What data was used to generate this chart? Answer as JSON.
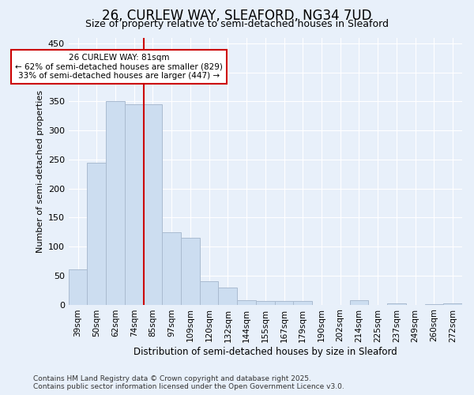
{
  "title_line1": "26, CURLEW WAY, SLEAFORD, NG34 7UD",
  "title_line2": "Size of property relative to semi-detached houses in Sleaford",
  "xlabel": "Distribution of semi-detached houses by size in Sleaford",
  "ylabel": "Number of semi-detached properties",
  "categories": [
    "39sqm",
    "50sqm",
    "62sqm",
    "74sqm",
    "85sqm",
    "97sqm",
    "109sqm",
    "120sqm",
    "132sqm",
    "144sqm",
    "155sqm",
    "167sqm",
    "179sqm",
    "190sqm",
    "202sqm",
    "214sqm",
    "225sqm",
    "237sqm",
    "249sqm",
    "260sqm",
    "272sqm"
  ],
  "values": [
    60,
    245,
    350,
    345,
    345,
    125,
    115,
    40,
    30,
    8,
    6,
    6,
    6,
    0,
    0,
    7,
    0,
    2,
    0,
    1,
    2
  ],
  "bar_color": "#ccddf0",
  "bar_edge_color": "#aabbd0",
  "property_line_color": "#cc0000",
  "annotation_text_line1": "26 CURLEW WAY: 81sqm",
  "annotation_text_line2": "← 62% of semi-detached houses are smaller (829)",
  "annotation_text_line3": "33% of semi-detached houses are larger (447) →",
  "annotation_box_facecolor": "#ffffff",
  "annotation_box_edgecolor": "#cc0000",
  "ylim": [
    0,
    460
  ],
  "yticks": [
    0,
    50,
    100,
    150,
    200,
    250,
    300,
    350,
    400,
    450
  ],
  "background_color": "#e8f0fa",
  "grid_color": "#ffffff",
  "title_fontsize": 12,
  "subtitle_fontsize": 9,
  "footer_text": "Contains HM Land Registry data © Crown copyright and database right 2025.\nContains public sector information licensed under the Open Government Licence v3.0."
}
